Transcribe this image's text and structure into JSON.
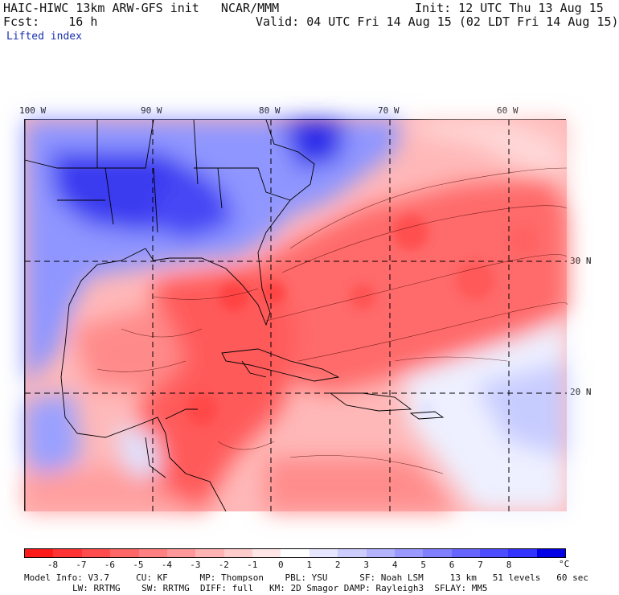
{
  "header": {
    "model_line": "HAIC-HIWC 13km ARW-GFS init   NCAR/MMM",
    "fcst_line": "Fcst:    16 h",
    "field_name": "Lifted index",
    "init_line": "Init: 12 UTC Thu 13 Aug 15",
    "valid_line": "Valid: 04 UTC Fri 14 Aug 15 (02 LDT Fri 14 Aug 15)"
  },
  "map": {
    "lon_labels": [
      "100 W",
      "90 W",
      "80 W",
      "70 W",
      "60 W"
    ],
    "lat_labels": [
      "30 N",
      "20 N"
    ]
  },
  "colorbar": {
    "ticks": [
      "-8",
      "-7",
      "-6",
      "-5",
      "-4",
      "-3",
      "-2",
      "-1",
      "0",
      "1",
      "2",
      "3",
      "4",
      "5",
      "6",
      "7",
      "8"
    ],
    "unit": "°C",
    "colors": [
      "#ff1a1a",
      "#ff3333",
      "#ff4d4d",
      "#ff6666",
      "#ff8080",
      "#ff9999",
      "#ffb3b3",
      "#ffcccc",
      "#ffe6e6",
      "#ffffff",
      "#e6e6ff",
      "#ccccff",
      "#b3b3ff",
      "#9999ff",
      "#8080ff",
      "#6666ff",
      "#4d4dff",
      "#3333ff",
      "#0000e6"
    ]
  },
  "model_info": {
    "line1": "Model Info: V3.7     CU: KF      MP: Thompson    PBL: YSU      SF: Noah LSM     13 km   51 levels   60 sec",
    "line2": "LW: RRTMG    SW: RRTMG  DIFF: full   KM: 2D Smagor DAMP: Rayleigh3  SFLAY: MM5"
  }
}
